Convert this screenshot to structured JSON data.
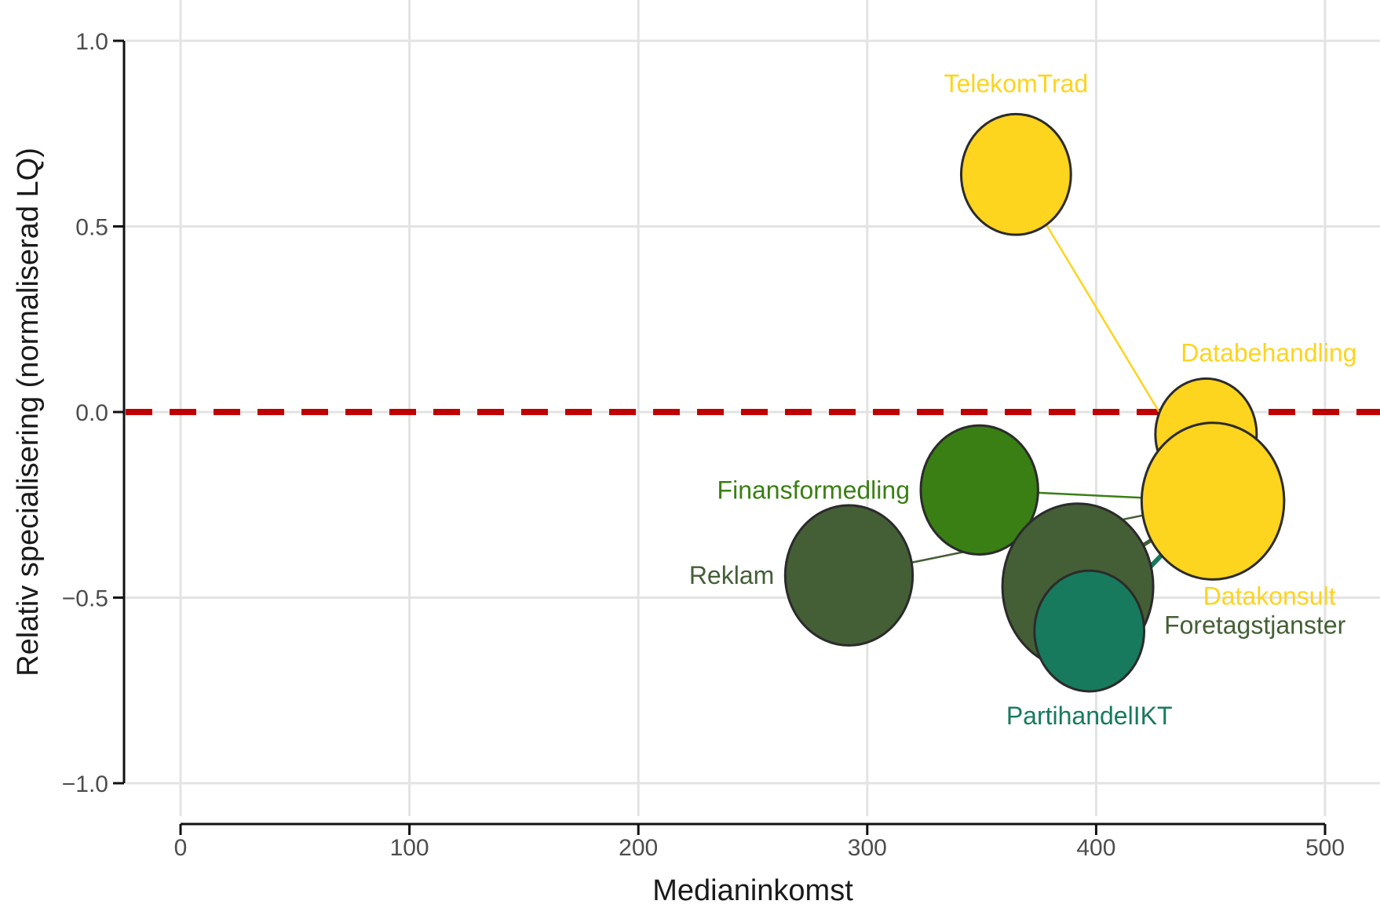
{
  "chart_data": {
    "type": "scatter",
    "title": "",
    "xlabel": "Medianinkomst",
    "ylabel": "Relativ specialisering (normaliserad LQ)",
    "xlim": [
      0,
      500
    ],
    "ylim": [
      -1.0,
      1.0
    ],
    "x_ticks": [
      0,
      100,
      200,
      300,
      400,
      500
    ],
    "y_ticks": [
      1.0,
      0.5,
      0.0,
      -0.5,
      -1.0
    ],
    "x_tick_labels": [
      "0",
      "100",
      "200",
      "300",
      "400",
      "500"
    ],
    "y_tick_labels": [
      "1.0",
      "0.5",
      "0.0",
      "−0.5",
      "−1.0"
    ],
    "grid": true,
    "reference_line": {
      "y": 0.0,
      "style": "dashed",
      "color": "#c00000"
    },
    "hub": "Datakonsult",
    "points": [
      {
        "name": "TelekomTrad",
        "x": 365,
        "y": 0.64,
        "size": 0.35,
        "color": "#fdd41e",
        "label_pos": "top"
      },
      {
        "name": "Databehandling",
        "x": 448,
        "y": -0.06,
        "size": 0.25,
        "color": "#fdd41e",
        "label_pos": "top-right"
      },
      {
        "name": "Finansformedling",
        "x": 349,
        "y": -0.21,
        "size": 0.45,
        "color": "#3a7f14",
        "label_pos": "left"
      },
      {
        "name": "Reklam",
        "x": 292,
        "y": -0.44,
        "size": 0.6,
        "color": "#445f36",
        "label_pos": "left"
      },
      {
        "name": "Foretagstjanster",
        "x": 392,
        "y": -0.47,
        "size": 1.0,
        "color": "#445f36",
        "label_pos": "right"
      },
      {
        "name": "PartihandelIKT",
        "x": 397,
        "y": -0.59,
        "size": 0.35,
        "color": "#177a5c",
        "label_pos": "bottom"
      },
      {
        "name": "Datakonsult",
        "x": 451,
        "y": -0.24,
        "size": 0.85,
        "color": "#fdd41e",
        "label_pos": "bottom-right"
      }
    ]
  }
}
